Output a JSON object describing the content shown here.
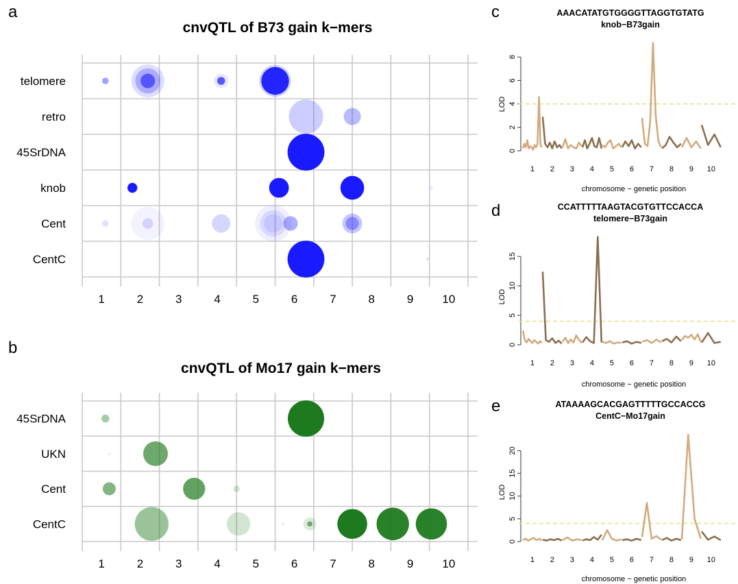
{
  "panels": {
    "a": "a",
    "b": "b",
    "c": "c",
    "d": "d",
    "e": "e"
  },
  "colors": {
    "blue": "#1a1aff",
    "green": "#1e7a1e",
    "grid": "#c8c8c8",
    "lod_light": "#d2aa7d",
    "lod_dark": "#8b6e51",
    "threshold": "#e3e08a"
  },
  "chart_data": [
    {
      "id": "a",
      "type": "scatter",
      "title": "cnvQTL of B73 gain k−mers",
      "categories": [
        "1",
        "2",
        "3",
        "4",
        "5",
        "6",
        "7",
        "8",
        "9",
        "10"
      ],
      "rows": [
        "telomere",
        "retro",
        "45SrDNA",
        "knob",
        "Cent",
        "CentC"
      ],
      "points": [
        {
          "row": "telomere",
          "x": 0.6,
          "size": 0.1,
          "alpha": 0.4
        },
        {
          "row": "telomere",
          "x": 1.7,
          "size": 0.5,
          "alpha": 0.15
        },
        {
          "row": "telomere",
          "x": 1.7,
          "size": 0.38,
          "alpha": 0.25
        },
        {
          "row": "telomere",
          "x": 1.7,
          "size": 0.22,
          "alpha": 0.6
        },
        {
          "row": "telomere",
          "x": 3.6,
          "size": 0.22,
          "alpha": 0.1
        },
        {
          "row": "telomere",
          "x": 3.6,
          "size": 0.12,
          "alpha": 0.7
        },
        {
          "row": "telomere",
          "x": 5.0,
          "size": 0.48,
          "alpha": 0.2
        },
        {
          "row": "telomere",
          "x": 5.0,
          "size": 0.42,
          "alpha": 0.95
        },
        {
          "row": "retro",
          "x": 5.8,
          "size": 0.52,
          "alpha": 0.22
        },
        {
          "row": "retro",
          "x": 7.0,
          "size": 0.26,
          "alpha": 0.3
        },
        {
          "row": "45SrDNA",
          "x": 5.8,
          "size": 0.56,
          "alpha": 1
        },
        {
          "row": "knob",
          "x": 1.3,
          "size": 0.15,
          "alpha": 1
        },
        {
          "row": "knob",
          "x": 5.1,
          "size": 0.3,
          "alpha": 1
        },
        {
          "row": "knob",
          "x": 7.0,
          "size": 0.36,
          "alpha": 1
        },
        {
          "row": "knob",
          "x": 9.05,
          "size": 0.05,
          "alpha": 0.1
        },
        {
          "row": "Cent",
          "x": 0.6,
          "size": 0.1,
          "alpha": 0.12
        },
        {
          "row": "Cent",
          "x": 1.7,
          "size": 0.5,
          "alpha": 0.05
        },
        {
          "row": "Cent",
          "x": 1.7,
          "size": 0.16,
          "alpha": 0.15
        },
        {
          "row": "Cent",
          "x": 3.6,
          "size": 0.28,
          "alpha": 0.18
        },
        {
          "row": "Cent",
          "x": 4.95,
          "size": 0.55,
          "alpha": 0.07
        },
        {
          "row": "Cent",
          "x": 4.95,
          "size": 0.4,
          "alpha": 0.1
        },
        {
          "row": "Cent",
          "x": 4.95,
          "size": 0.28,
          "alpha": 0.1
        },
        {
          "row": "Cent",
          "x": 5.4,
          "size": 0.22,
          "alpha": 0.35
        },
        {
          "row": "Cent",
          "x": 7.0,
          "size": 0.3,
          "alpha": 0.25
        },
        {
          "row": "Cent",
          "x": 7.0,
          "size": 0.2,
          "alpha": 0.35
        },
        {
          "row": "CentC",
          "x": 5.8,
          "size": 0.56,
          "alpha": 1
        },
        {
          "row": "CentC",
          "x": 8.95,
          "size": 0.04,
          "alpha": 0.15
        }
      ]
    },
    {
      "id": "b",
      "type": "scatter",
      "title": "cnvQTL of Mo17 gain k−mers",
      "categories": [
        "1",
        "2",
        "3",
        "4",
        "5",
        "6",
        "7",
        "8",
        "9",
        "10"
      ],
      "rows": [
        "45SrDNA",
        "UKN",
        "Cent",
        "CentC"
      ],
      "points": [
        {
          "row": "45SrDNA",
          "x": 0.6,
          "size": 0.12,
          "alpha": 0.4
        },
        {
          "row": "45SrDNA",
          "x": 5.8,
          "size": 0.56,
          "alpha": 1
        },
        {
          "row": "UKN",
          "x": 0.7,
          "size": 0.04,
          "alpha": 0.1
        },
        {
          "row": "UKN",
          "x": 1.9,
          "size": 0.38,
          "alpha": 0.65
        },
        {
          "row": "Cent",
          "x": 0.7,
          "size": 0.2,
          "alpha": 0.55
        },
        {
          "row": "Cent",
          "x": 2.9,
          "size": 0.34,
          "alpha": 0.7
        },
        {
          "row": "Cent",
          "x": 4.0,
          "size": 0.1,
          "alpha": 0.2
        },
        {
          "row": "CentC",
          "x": 1.8,
          "size": 0.52,
          "alpha": 0.45
        },
        {
          "row": "CentC",
          "x": 4.05,
          "size": 0.36,
          "alpha": 0.2
        },
        {
          "row": "CentC",
          "x": 5.2,
          "size": 0.04,
          "alpha": 0.15
        },
        {
          "row": "CentC",
          "x": 5.9,
          "size": 0.2,
          "alpha": 0.15
        },
        {
          "row": "CentC",
          "x": 5.9,
          "size": 0.08,
          "alpha": 0.6
        },
        {
          "row": "CentC",
          "x": 7.0,
          "size": 0.46,
          "alpha": 1
        },
        {
          "row": "CentC",
          "x": 8.05,
          "size": 0.5,
          "alpha": 0.95
        },
        {
          "row": "CentC",
          "x": 9.05,
          "size": 0.48,
          "alpha": 0.95
        }
      ]
    },
    {
      "id": "c",
      "type": "line",
      "title": "AAACATATGTGGGGTTAGGTGTATG",
      "subtitle": "knob−B73gain",
      "xlabel": "chromosome − genetic position",
      "ylabel": "LOD",
      "ylim": [
        0,
        9.3
      ],
      "yticks": [
        0,
        2,
        4,
        6,
        8
      ],
      "threshold": 4,
      "chromosomes": [
        "1",
        "2",
        "3",
        "4",
        "5",
        "6",
        "7",
        "8",
        "9",
        "10"
      ],
      "series": [
        [
          0.2,
          0.6,
          0.3,
          0.9,
          0.2,
          0.4,
          0.3,
          0.1,
          0.5,
          0.3,
          0.6,
          4.6,
          0.5,
          0.3
        ],
        [
          2.9,
          0.6,
          0.3,
          0.7,
          0.2,
          0.8,
          0.3,
          0.5,
          0.2
        ],
        [
          0.3,
          1.0,
          0.2,
          0.5,
          0.3,
          0.2,
          0.7,
          0.4
        ],
        [
          0.3,
          0.9,
          0.2,
          0.6,
          1.1,
          0.4,
          0.3,
          1.1,
          0.2
        ],
        [
          0.5,
          0.3,
          0.7,
          0.9,
          0.2,
          0.4,
          0.6,
          0.3
        ],
        [
          0.3,
          0.8,
          0.4,
          0.9,
          0.2,
          0.6,
          0.3
        ],
        [
          2.8,
          0.6,
          0.4,
          2.5,
          9.2,
          3.0,
          0.8,
          0.3
        ],
        [
          0.2,
          0.5,
          1.2,
          0.7,
          0.3,
          0.6
        ],
        [
          0.3,
          1.1,
          0.3,
          0.8,
          0.2
        ],
        [
          2.2,
          0.5,
          1.4,
          0.3
        ]
      ]
    },
    {
      "id": "d",
      "type": "line",
      "title": "CCATTTTTAAGTACGTGTTCCACCA",
      "subtitle": "telomere−B73gain",
      "xlabel": "chromosome − genetic position",
      "ylabel": "LOD",
      "ylim": [
        0,
        18.5
      ],
      "yticks": [
        0,
        5,
        10,
        15
      ],
      "threshold": 4,
      "chromosomes": [
        "1",
        "2",
        "3",
        "4",
        "5",
        "6",
        "7",
        "8",
        "9",
        "10"
      ],
      "series": [
        [
          2.4,
          0.8,
          0.4,
          1.0,
          0.6,
          0.3,
          0.8,
          0.5,
          0.2,
          0.6,
          0.3
        ],
        [
          12.4,
          0.8,
          0.5,
          1.1,
          0.3,
          0.7,
          0.2
        ],
        [
          0.5,
          1.2,
          0.3,
          0.9,
          0.4,
          1.6,
          0.8,
          0.3
        ],
        [
          0.4,
          1.3,
          0.6,
          0.3,
          18.3,
          0.4
        ],
        [
          0.5,
          0.3,
          0.6,
          0.2,
          0.4,
          0.3
        ],
        [
          0.4,
          0.6,
          0.2,
          0.5,
          0.3
        ],
        [
          0.5,
          0.8,
          0.3,
          0.9,
          0.4
        ],
        [
          0.6,
          1.0,
          0.4,
          1.4,
          0.6
        ],
        [
          0.8,
          1.5,
          1.2,
          1.7,
          0.9,
          1.8,
          0.5
        ],
        [
          0.4,
          2.0,
          0.3,
          0.5
        ]
      ]
    },
    {
      "id": "e",
      "type": "line",
      "title": "ATAAAAGCACGAGTTTTTGCCACCG",
      "subtitle": "CentC−Mo17gain",
      "xlabel": "chromosome − genetic position",
      "ylabel": "LOD",
      "ylim": [
        0,
        24
      ],
      "yticks": [
        0,
        5,
        10,
        15,
        20
      ],
      "threshold": 4,
      "chromosomes": [
        "1",
        "2",
        "3",
        "4",
        "5",
        "6",
        "7",
        "8",
        "9",
        "10"
      ],
      "series": [
        [
          0.3,
          0.6,
          0.2,
          0.5,
          0.8,
          0.3,
          0.6,
          0.2
        ],
        [
          0.4,
          0.2,
          0.5,
          0.3,
          0.6,
          0.2
        ],
        [
          0.3,
          0.9,
          0.2,
          0.5,
          0.3
        ],
        [
          0.2,
          0.5,
          0.3,
          1.0,
          0.4,
          1.5
        ],
        [
          0.3,
          2.5,
          0.6,
          0.2,
          0.5
        ],
        [
          0.3,
          0.5,
          0.2,
          0.6,
          0.3
        ],
        [
          1.0,
          8.5,
          0.6,
          1.2,
          0.4
        ],
        [
          0.3,
          0.8,
          0.2,
          0.6,
          0.3
        ],
        [
          0.5,
          23.5,
          5.0,
          0.6
        ],
        [
          2.2,
          0.4,
          1.1,
          0.3
        ]
      ]
    }
  ]
}
